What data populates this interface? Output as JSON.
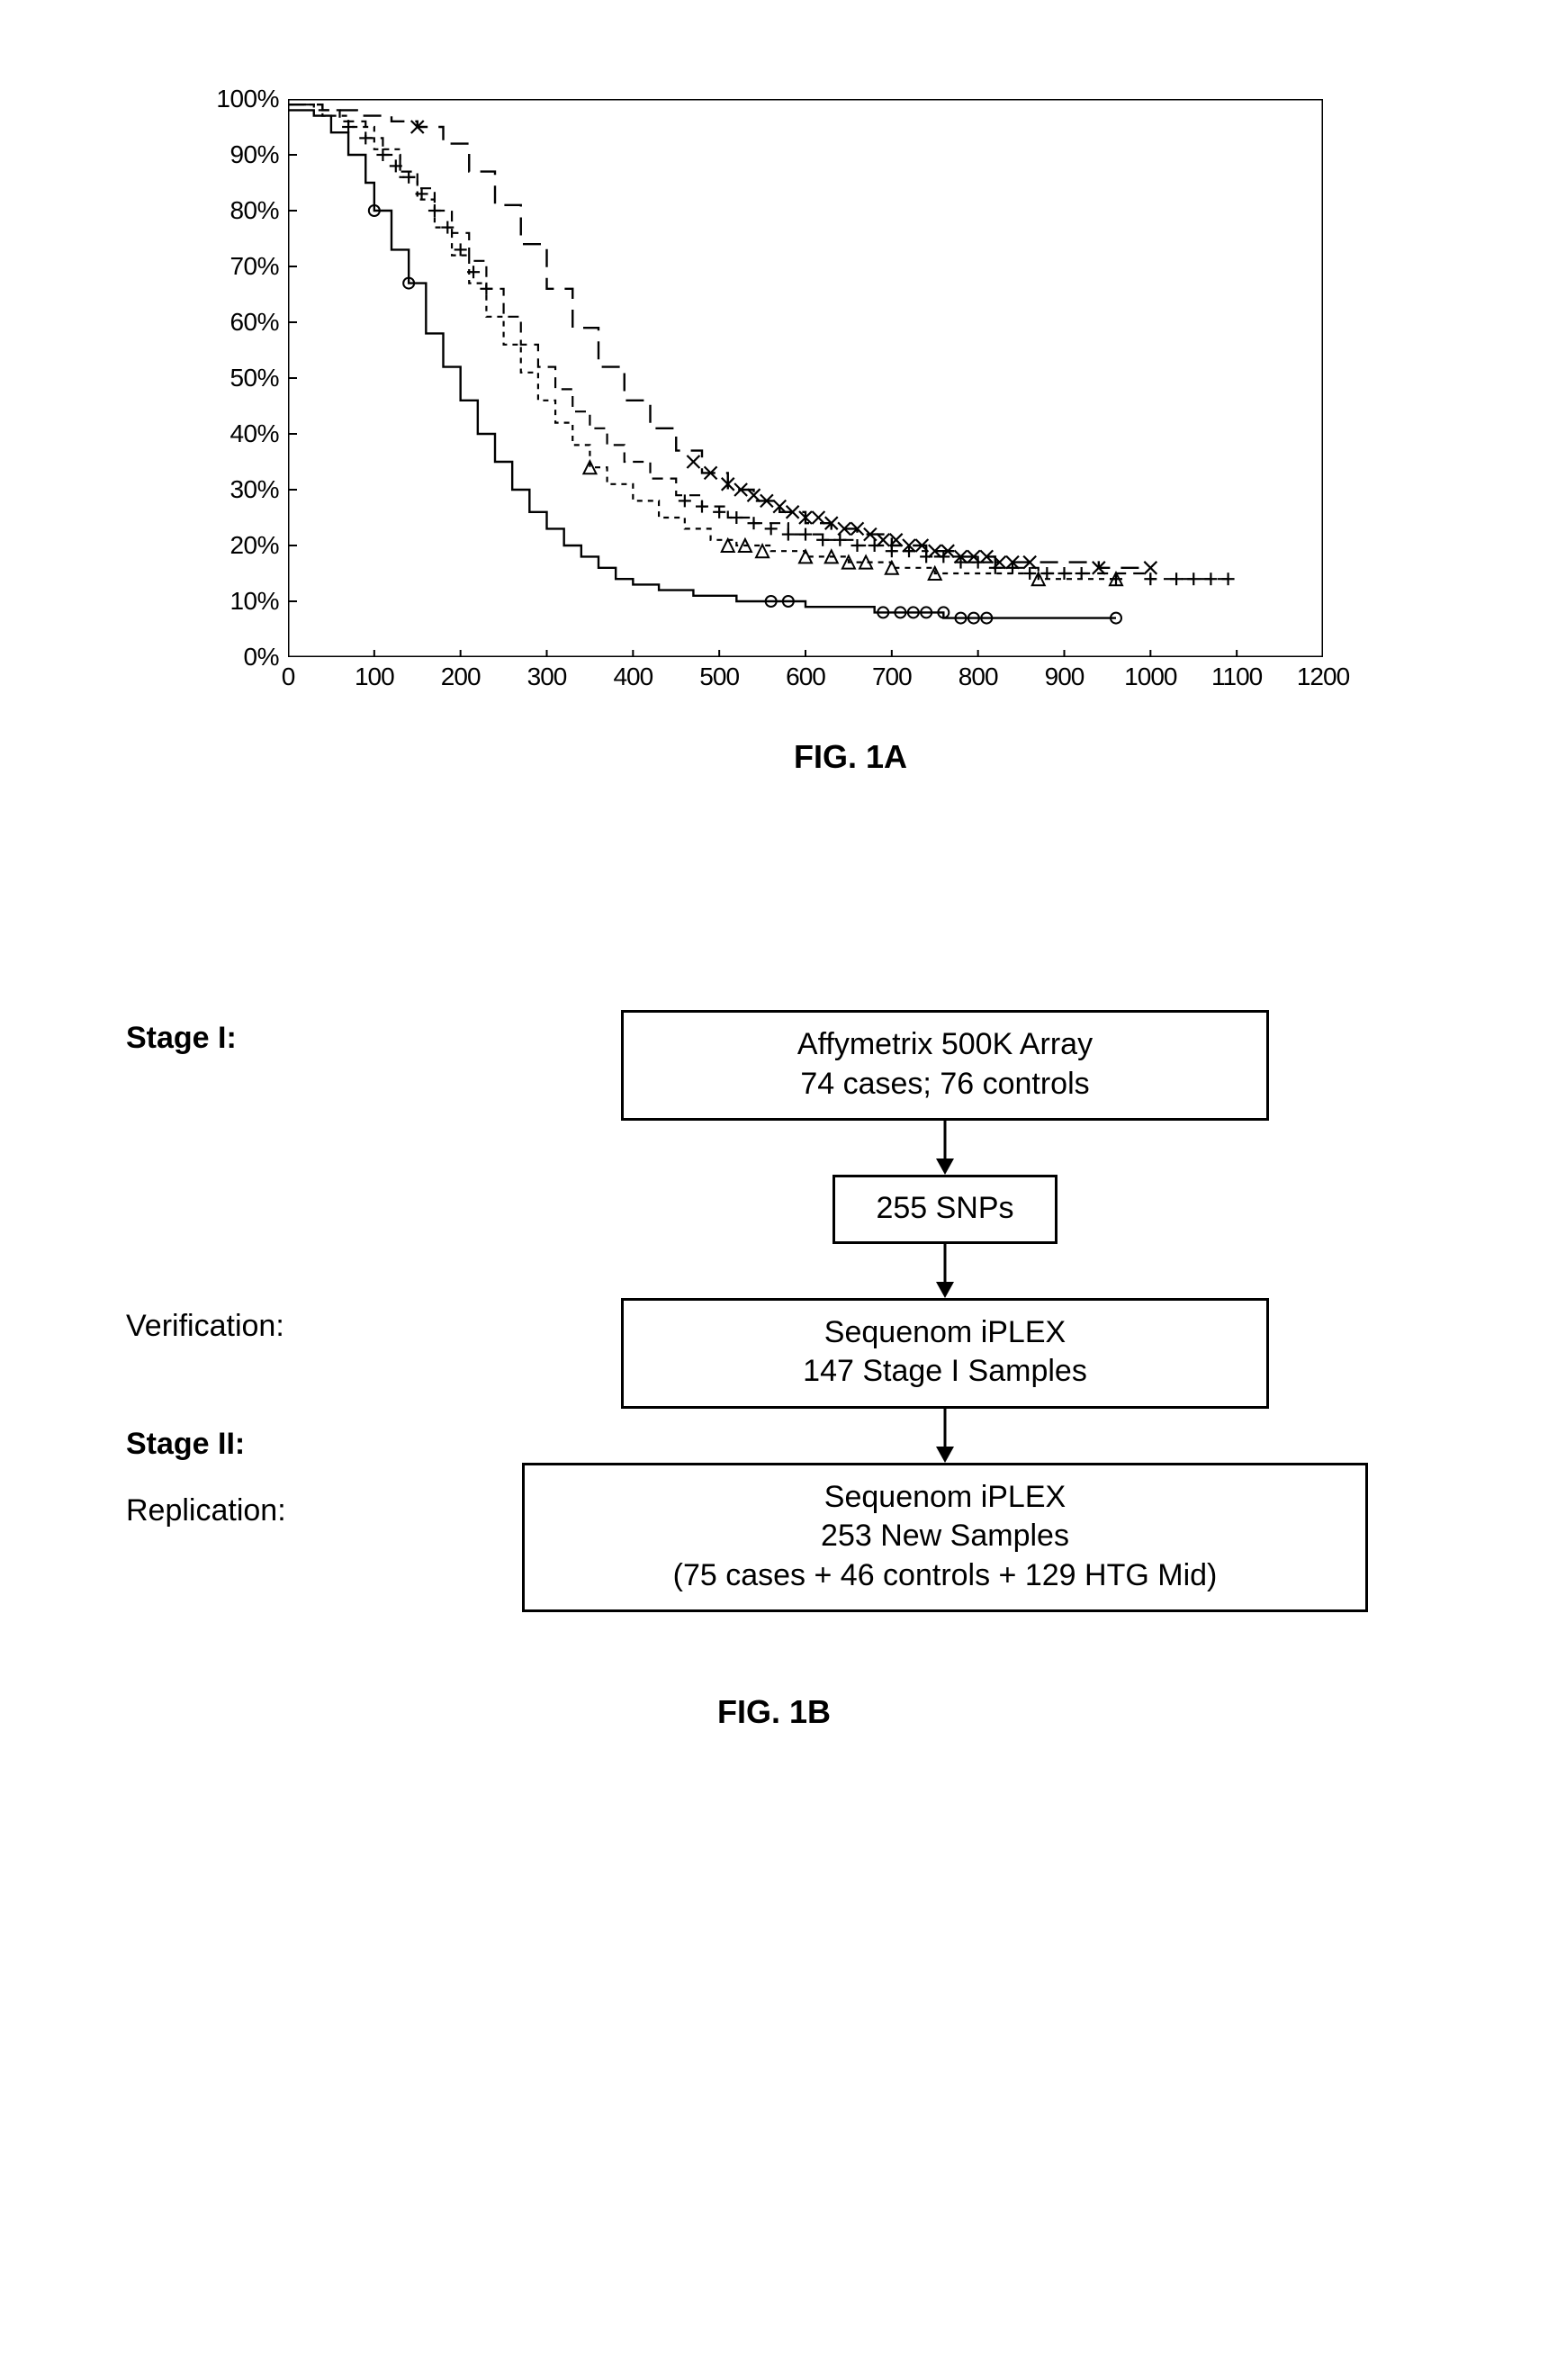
{
  "fig1a": {
    "type": "survival-curve",
    "caption": "FIG. 1A",
    "xlim": [
      0,
      1200
    ],
    "ylim": [
      0,
      100
    ],
    "x_ticks": [
      0,
      100,
      200,
      300,
      400,
      500,
      600,
      700,
      800,
      900,
      1000,
      1100,
      1200
    ],
    "y_ticks": [
      0,
      10,
      20,
      30,
      40,
      50,
      60,
      70,
      80,
      90,
      100
    ],
    "y_tick_labels": [
      "0%",
      "10%",
      "20%",
      "30%",
      "40%",
      "50%",
      "60%",
      "70%",
      "80%",
      "90%",
      "100%"
    ],
    "background_color": "#ffffff",
    "border_color": "#000000",
    "border_width": 3,
    "series": {
      "circle": {
        "marker": "circle",
        "line_style": "solid",
        "line_width": 2.4,
        "color": "#000000",
        "points": [
          [
            0,
            98
          ],
          [
            30,
            97
          ],
          [
            50,
            94
          ],
          [
            70,
            90
          ],
          [
            90,
            85
          ],
          [
            100,
            80
          ],
          [
            120,
            73
          ],
          [
            140,
            67
          ],
          [
            160,
            58
          ],
          [
            180,
            52
          ],
          [
            200,
            46
          ],
          [
            220,
            40
          ],
          [
            240,
            35
          ],
          [
            260,
            30
          ],
          [
            280,
            26
          ],
          [
            300,
            23
          ],
          [
            320,
            20
          ],
          [
            340,
            18
          ],
          [
            360,
            16
          ],
          [
            380,
            14
          ],
          [
            400,
            13
          ],
          [
            430,
            12
          ],
          [
            470,
            11
          ],
          [
            520,
            10
          ],
          [
            560,
            10
          ],
          [
            600,
            9
          ],
          [
            640,
            9
          ],
          [
            680,
            8
          ],
          [
            720,
            8
          ],
          [
            760,
            7
          ],
          [
            800,
            7
          ],
          [
            850,
            7
          ],
          [
            960,
            7
          ]
        ],
        "censor_marks": [
          [
            100,
            80
          ],
          [
            140,
            67
          ],
          [
            560,
            10
          ],
          [
            580,
            10
          ],
          [
            690,
            8
          ],
          [
            710,
            8
          ],
          [
            725,
            8
          ],
          [
            740,
            8
          ],
          [
            760,
            8
          ],
          [
            780,
            7
          ],
          [
            795,
            7
          ],
          [
            810,
            7
          ],
          [
            960,
            7
          ]
        ]
      },
      "triangle": {
        "marker": "triangle",
        "line_style": "short-dash",
        "line_width": 2.2,
        "color": "#000000",
        "points": [
          [
            0,
            99
          ],
          [
            40,
            97
          ],
          [
            70,
            95
          ],
          [
            100,
            91
          ],
          [
            130,
            86
          ],
          [
            150,
            82
          ],
          [
            170,
            77
          ],
          [
            190,
            72
          ],
          [
            210,
            67
          ],
          [
            230,
            61
          ],
          [
            250,
            56
          ],
          [
            270,
            51
          ],
          [
            290,
            46
          ],
          [
            310,
            42
          ],
          [
            330,
            38
          ],
          [
            350,
            34
          ],
          [
            370,
            31
          ],
          [
            400,
            28
          ],
          [
            430,
            25
          ],
          [
            460,
            23
          ],
          [
            490,
            21
          ],
          [
            520,
            20
          ],
          [
            560,
            19
          ],
          [
            600,
            18
          ],
          [
            650,
            17
          ],
          [
            700,
            16
          ],
          [
            750,
            15
          ],
          [
            800,
            15
          ],
          [
            870,
            14
          ],
          [
            960,
            14
          ]
        ],
        "censor_marks": [
          [
            350,
            34
          ],
          [
            510,
            20
          ],
          [
            530,
            20
          ],
          [
            550,
            19
          ],
          [
            600,
            18
          ],
          [
            630,
            18
          ],
          [
            650,
            17
          ],
          [
            670,
            17
          ],
          [
            700,
            16
          ],
          [
            750,
            15
          ],
          [
            870,
            14
          ],
          [
            960,
            14
          ]
        ]
      },
      "plus": {
        "marker": "plus",
        "line_style": "medium-dash",
        "line_width": 2.2,
        "color": "#000000",
        "points": [
          [
            0,
            99
          ],
          [
            30,
            98
          ],
          [
            60,
            96
          ],
          [
            90,
            93
          ],
          [
            110,
            90
          ],
          [
            130,
            87
          ],
          [
            150,
            84
          ],
          [
            170,
            80
          ],
          [
            190,
            76
          ],
          [
            210,
            71
          ],
          [
            230,
            66
          ],
          [
            250,
            61
          ],
          [
            270,
            56
          ],
          [
            290,
            52
          ],
          [
            310,
            48
          ],
          [
            330,
            44
          ],
          [
            350,
            41
          ],
          [
            370,
            38
          ],
          [
            390,
            35
          ],
          [
            420,
            32
          ],
          [
            450,
            29
          ],
          [
            480,
            27
          ],
          [
            510,
            25
          ],
          [
            540,
            24
          ],
          [
            580,
            22
          ],
          [
            620,
            21
          ],
          [
            660,
            20
          ],
          [
            700,
            19
          ],
          [
            740,
            18
          ],
          [
            780,
            17
          ],
          [
            820,
            16
          ],
          [
            870,
            15
          ],
          [
            920,
            15
          ],
          [
            1000,
            14
          ],
          [
            1060,
            14
          ],
          [
            1090,
            14
          ]
        ],
        "censor_marks": [
          [
            70,
            95
          ],
          [
            90,
            93
          ],
          [
            110,
            90
          ],
          [
            125,
            88
          ],
          [
            140,
            86
          ],
          [
            155,
            83
          ],
          [
            170,
            80
          ],
          [
            185,
            77
          ],
          [
            200,
            73
          ],
          [
            215,
            69
          ],
          [
            230,
            66
          ],
          [
            460,
            28
          ],
          [
            480,
            27
          ],
          [
            500,
            26
          ],
          [
            520,
            25
          ],
          [
            540,
            24
          ],
          [
            560,
            23
          ],
          [
            580,
            22
          ],
          [
            600,
            22
          ],
          [
            620,
            21
          ],
          [
            640,
            21
          ],
          [
            660,
            20
          ],
          [
            680,
            20
          ],
          [
            700,
            19
          ],
          [
            720,
            19
          ],
          [
            740,
            18
          ],
          [
            760,
            18
          ],
          [
            780,
            17
          ],
          [
            800,
            17
          ],
          [
            820,
            16
          ],
          [
            840,
            16
          ],
          [
            860,
            15
          ],
          [
            880,
            15
          ],
          [
            900,
            15
          ],
          [
            920,
            15
          ],
          [
            960,
            14
          ],
          [
            1000,
            14
          ],
          [
            1030,
            14
          ],
          [
            1050,
            14
          ],
          [
            1070,
            14
          ],
          [
            1090,
            14
          ]
        ]
      },
      "cross": {
        "marker": "x",
        "line_style": "long-dash",
        "line_width": 2.4,
        "color": "#000000",
        "points": [
          [
            0,
            99
          ],
          [
            40,
            98
          ],
          [
            80,
            97
          ],
          [
            120,
            96
          ],
          [
            150,
            95
          ],
          [
            180,
            92
          ],
          [
            210,
            87
          ],
          [
            240,
            81
          ],
          [
            270,
            74
          ],
          [
            300,
            66
          ],
          [
            330,
            59
          ],
          [
            360,
            52
          ],
          [
            390,
            46
          ],
          [
            420,
            41
          ],
          [
            450,
            37
          ],
          [
            480,
            33
          ],
          [
            510,
            30
          ],
          [
            540,
            28
          ],
          [
            570,
            26
          ],
          [
            600,
            24
          ],
          [
            630,
            23
          ],
          [
            660,
            22
          ],
          [
            700,
            20
          ],
          [
            740,
            19
          ],
          [
            780,
            18
          ],
          [
            820,
            17
          ],
          [
            870,
            17
          ],
          [
            940,
            16
          ],
          [
            1000,
            16
          ]
        ],
        "censor_marks": [
          [
            150,
            95
          ],
          [
            470,
            35
          ],
          [
            490,
            33
          ],
          [
            510,
            31
          ],
          [
            525,
            30
          ],
          [
            540,
            29
          ],
          [
            555,
            28
          ],
          [
            570,
            27
          ],
          [
            585,
            26
          ],
          [
            600,
            25
          ],
          [
            615,
            25
          ],
          [
            630,
            24
          ],
          [
            645,
            23
          ],
          [
            660,
            23
          ],
          [
            675,
            22
          ],
          [
            690,
            21
          ],
          [
            705,
            21
          ],
          [
            720,
            20
          ],
          [
            735,
            20
          ],
          [
            750,
            19
          ],
          [
            765,
            19
          ],
          [
            780,
            18
          ],
          [
            795,
            18
          ],
          [
            810,
            18
          ],
          [
            825,
            17
          ],
          [
            840,
            17
          ],
          [
            860,
            17
          ],
          [
            940,
            16
          ],
          [
            1000,
            16
          ]
        ]
      }
    }
  },
  "fig1b": {
    "type": "flowchart",
    "caption": "FIG. 1B",
    "border_color": "#000000",
    "border_width": 3,
    "arrow_color": "#000000",
    "arrow_length": 60,
    "font_size": 34,
    "nodes": [
      {
        "id": "n1",
        "side_label": "Stage I:",
        "side_bold": true,
        "lines": [
          "Affymetrix 500K Array",
          "74 cases; 76 controls"
        ]
      },
      {
        "id": "n2",
        "side_label": "",
        "side_bold": false,
        "lines": [
          "255 SNPs"
        ]
      },
      {
        "id": "n3",
        "side_label": "Verification:",
        "side_bold": false,
        "lines": [
          "Sequenom iPLEX",
          "147 Stage I Samples"
        ]
      },
      {
        "id": "n4a_label",
        "side_label": "Stage II:",
        "side_bold": true,
        "lines": []
      },
      {
        "id": "n4",
        "side_label": "Replication:",
        "side_bold": false,
        "lines": [
          "Sequenom iPLEX",
          "253 New Samples",
          "(75 cases + 46 controls + 129 HTG Mid)"
        ]
      }
    ]
  }
}
